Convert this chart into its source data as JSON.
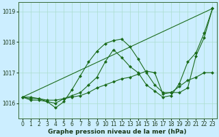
{
  "xlabel": "Graphe pression niveau de la mer (hPa)",
  "background_color": "#cceeff",
  "grid_color": "#aaddcc",
  "xlim": [
    -0.5,
    23.5
  ],
  "ylim": [
    1015.5,
    1019.3
  ],
  "yticks": [
    1016,
    1017,
    1018,
    1019
  ],
  "xticks": [
    0,
    1,
    2,
    3,
    4,
    5,
    6,
    7,
    8,
    9,
    10,
    11,
    12,
    13,
    14,
    15,
    16,
    17,
    18,
    19,
    20,
    21,
    22,
    23
  ],
  "series": [
    {
      "x": [
        0,
        23
      ],
      "y": [
        1016.2,
        1019.1
      ],
      "color": "#1a6b1a",
      "linewidth": 0.8,
      "marker": null
    },
    {
      "x": [
        0,
        1,
        2,
        3,
        4,
        5,
        6,
        7,
        8,
        9,
        10,
        11,
        12,
        13,
        14,
        15,
        16,
        17,
        18,
        19,
        20,
        21,
        22,
        23
      ],
      "y": [
        1016.2,
        1016.1,
        1016.1,
        1016.05,
        1015.85,
        1016.05,
        1016.45,
        1016.9,
        1017.35,
        1017.7,
        1017.95,
        1018.05,
        1018.1,
        1017.85,
        1017.45,
        1017.0,
        1016.6,
        1016.35,
        1016.35,
        1016.35,
        1016.5,
        1017.55,
        1018.15,
        1019.1
      ],
      "color": "#1a6b1a",
      "linewidth": 0.8,
      "marker": "D",
      "markersize": 2.0
    },
    {
      "x": [
        0,
        1,
        2,
        3,
        4,
        5,
        6,
        7,
        8,
        9,
        10,
        11,
        12,
        13,
        14,
        15,
        16,
        17,
        18,
        19,
        20,
        21,
        22,
        23
      ],
      "y": [
        1016.2,
        1016.15,
        1016.15,
        1016.1,
        1016.1,
        1016.15,
        1016.2,
        1016.25,
        1016.35,
        1016.5,
        1016.6,
        1016.7,
        1016.8,
        1016.85,
        1016.95,
        1017.05,
        1017.0,
        1016.3,
        1016.35,
        1016.55,
        1016.75,
        1016.85,
        1017.0,
        1017.0
      ],
      "color": "#1a6b1a",
      "linewidth": 0.8,
      "marker": "D",
      "markersize": 2.0
    },
    {
      "x": [
        0,
        1,
        2,
        3,
        4,
        5,
        6,
        7,
        8,
        9,
        10,
        11,
        12,
        13,
        14,
        15,
        16,
        17,
        18,
        19,
        20,
        21,
        22,
        23
      ],
      "y": [
        1016.2,
        1016.2,
        1016.15,
        1016.05,
        1016.0,
        1016.15,
        1016.25,
        1016.35,
        1016.6,
        1016.85,
        1017.35,
        1017.75,
        1017.5,
        1017.2,
        1017.0,
        1016.6,
        1016.4,
        1016.2,
        1016.25,
        1016.65,
        1017.35,
        1017.65,
        1018.3,
        1019.1
      ],
      "color": "#1a6b1a",
      "linewidth": 0.8,
      "marker": "D",
      "markersize": 2.0
    }
  ],
  "tick_fontsize": 5.5,
  "label_fontsize": 6.5,
  "label_fontweight": "bold"
}
